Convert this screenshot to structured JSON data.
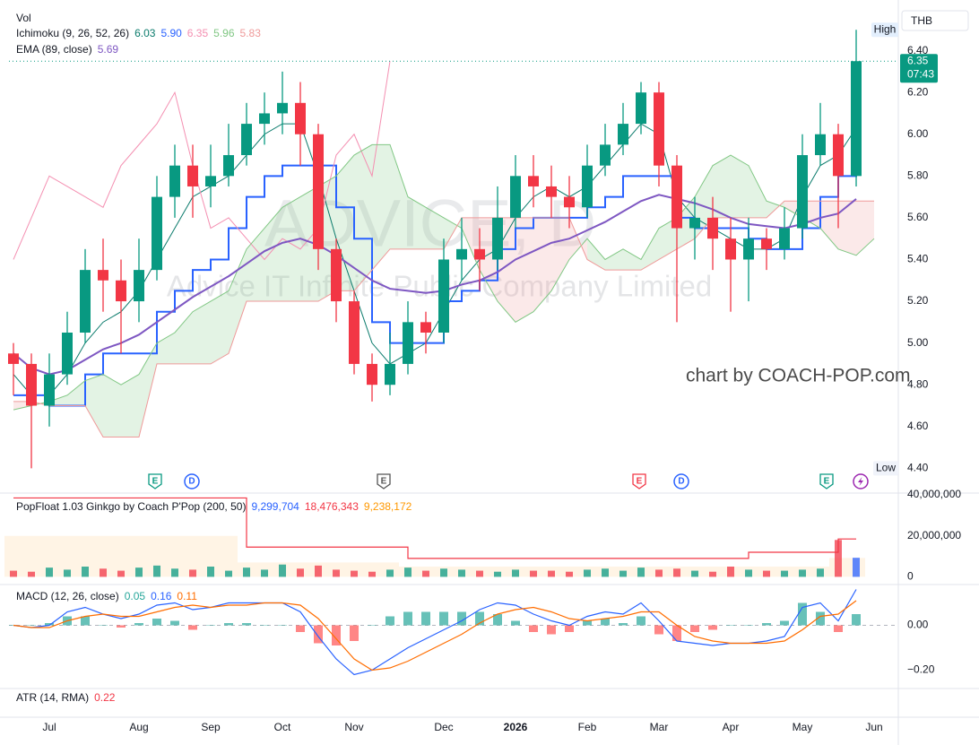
{
  "vol_label": "Vol",
  "currency": "THB",
  "high_label": "High",
  "low_label": "Low",
  "countdown": "07:43",
  "watermark_symbol": "ADVICE, D",
  "watermark_company": "Advice IT Infinite Public Company Limited",
  "credit": "chart by COACH-POP.com",
  "events": [
    "E",
    "D",
    "E",
    "E",
    "D",
    "E"
  ],
  "chart_data": [
    {
      "type": "candlestick",
      "categories": [
        null,
        null,
        "Jul",
        null,
        null,
        null,
        null,
        "Aug",
        null,
        null,
        null,
        "Sep",
        null,
        null,
        null,
        "Oct",
        null,
        null,
        null,
        "Nov",
        null,
        null,
        null,
        null,
        "Dec",
        null,
        null,
        null,
        "2026",
        null,
        null,
        null,
        "Feb",
        null,
        null,
        null,
        "Mar",
        null,
        null,
        null,
        "Apr",
        null,
        null,
        null,
        "May",
        null,
        null,
        null,
        "Jun"
      ],
      "open": [
        4.95,
        4.9,
        4.7,
        4.85,
        5.05,
        5.35,
        5.3,
        5.2,
        5.35,
        5.7,
        5.85,
        5.75,
        5.8,
        5.9,
        6.05,
        6.1,
        6.15,
        6.0,
        5.45,
        5.2,
        4.9,
        4.8,
        4.9,
        5.1,
        5.05,
        5.4,
        5.45,
        5.4,
        5.6,
        5.8,
        5.75,
        5.7,
        5.65,
        5.85,
        5.95,
        6.05,
        6.2,
        5.85,
        5.55,
        5.6,
        5.5,
        5.4,
        5.5,
        5.45,
        5.55,
        5.9,
        6.0,
        5.8,
        null
      ],
      "high": [
        5.0,
        4.95,
        4.95,
        5.15,
        5.45,
        5.5,
        5.4,
        5.5,
        5.8,
        5.95,
        5.95,
        5.95,
        6.05,
        6.15,
        6.2,
        6.3,
        6.25,
        6.05,
        5.5,
        5.25,
        4.95,
        5.05,
        5.2,
        5.15,
        5.5,
        5.6,
        5.55,
        5.75,
        5.9,
        5.9,
        5.85,
        5.8,
        5.95,
        6.05,
        6.15,
        6.25,
        6.25,
        5.9,
        5.7,
        5.7,
        5.6,
        5.6,
        5.55,
        5.65,
        6.0,
        6.15,
        6.05,
        6.5,
        null
      ],
      "low": [
        4.75,
        4.4,
        4.6,
        4.8,
        5.0,
        5.15,
        4.95,
        5.1,
        5.3,
        5.6,
        5.6,
        5.65,
        5.75,
        5.85,
        5.95,
        6.0,
        5.85,
        5.35,
        5.1,
        4.85,
        4.72,
        4.75,
        4.85,
        4.95,
        5.0,
        5.3,
        5.25,
        5.35,
        5.55,
        5.65,
        5.6,
        5.55,
        5.6,
        5.8,
        5.9,
        6.0,
        5.75,
        5.1,
        5.4,
        5.35,
        5.15,
        5.2,
        5.35,
        5.4,
        5.5,
        5.85,
        5.55,
        5.75,
        null
      ],
      "close": [
        4.9,
        4.7,
        4.85,
        5.05,
        5.35,
        5.3,
        5.2,
        5.35,
        5.7,
        5.85,
        5.75,
        5.8,
        5.9,
        6.05,
        6.1,
        6.15,
        6.0,
        5.45,
        5.2,
        4.9,
        4.8,
        4.9,
        5.1,
        5.05,
        5.4,
        5.45,
        5.4,
        5.6,
        5.8,
        5.75,
        5.7,
        5.65,
        5.85,
        5.95,
        6.05,
        6.2,
        5.85,
        5.55,
        5.6,
        5.5,
        5.4,
        5.5,
        5.45,
        5.55,
        5.9,
        6.0,
        5.8,
        6.35,
        null
      ],
      "up_color": "#089981",
      "down_color": "#f23645",
      "ylim": [
        4.29,
        6.6
      ],
      "yticks": [
        {
          "value": 4.4,
          "label": "4.40"
        },
        {
          "value": 4.6,
          "label": "4.60"
        },
        {
          "value": 4.8,
          "label": "4.80"
        },
        {
          "value": 5.0,
          "label": "5.00"
        },
        {
          "value": 5.2,
          "label": "5.20"
        },
        {
          "value": 5.4,
          "label": "5.40"
        },
        {
          "value": 5.6,
          "label": "5.60"
        },
        {
          "value": 5.8,
          "label": "5.80"
        },
        {
          "value": 6.0,
          "label": "6.00"
        },
        {
          "value": 6.2,
          "label": "6.20"
        },
        {
          "value": 6.4,
          "label": "6.40"
        }
      ],
      "grid": false,
      "indicators": [
        {
          "name": "Ichimoku (9, 26, 52, 26)",
          "series": [
            {
              "color": "#0b7b6c",
              "width": 1,
              "values": [
                4.85,
                4.75,
                4.75,
                4.85,
                5.0,
                5.1,
                5.15,
                5.25,
                5.4,
                5.55,
                5.7,
                5.75,
                5.8,
                5.9,
                6.0,
                6.05,
                6.05,
                5.8,
                5.5,
                5.25,
                5.0,
                4.9,
                4.95,
                5.0,
                5.15,
                5.3,
                5.4,
                5.45,
                5.6,
                5.7,
                5.75,
                5.7,
                5.75,
                5.85,
                5.95,
                6.05,
                6.0,
                5.7,
                5.6,
                5.55,
                5.5,
                5.45,
                5.45,
                5.5,
                5.7,
                5.85,
                5.9,
                6.03,
                null
              ]
            },
            {
              "color": "#2962ff",
              "width": 2,
              "last_label": "5.90",
              "values": [
                4.75,
                4.75,
                4.7,
                4.7,
                4.85,
                4.95,
                4.95,
                4.95,
                5.15,
                5.25,
                5.35,
                5.4,
                5.55,
                5.7,
                5.8,
                5.85,
                5.85,
                5.85,
                5.65,
                5.5,
                5.1,
                5.0,
                5.0,
                5.0,
                5.2,
                5.25,
                5.3,
                5.45,
                5.55,
                5.6,
                5.6,
                5.6,
                5.65,
                5.7,
                5.8,
                5.8,
                5.8,
                5.6,
                5.55,
                5.55,
                5.55,
                5.5,
                5.45,
                5.45,
                5.55,
                5.7,
                5.8,
                5.9,
                null
              ]
            },
            {
              "color": "#f48fb1",
              "width": 1,
              "values": [
                5.4,
                5.6,
                5.8,
                5.75,
                5.7,
                5.65,
                5.85,
                5.95,
                6.05,
                6.2,
                5.85,
                5.55,
                5.6,
                5.5,
                5.4,
                5.5,
                5.45,
                5.55,
                5.9,
                6.0,
                5.8,
                6.35,
                null,
                null,
                null,
                null,
                null,
                null,
                null,
                null,
                null,
                null,
                null,
                null,
                null,
                null,
                null,
                null,
                null,
                null,
                null,
                null,
                null,
                null,
                null,
                null,
                null,
                null,
                null
              ]
            },
            {
              "color": "#81c784",
              "width": 1,
              "last": 5.96,
              "values": [
                4.68,
                4.7,
                4.72,
                4.75,
                4.82,
                4.85,
                4.8,
                4.85,
                5.0,
                5.05,
                5.15,
                5.2,
                5.25,
                5.45,
                5.55,
                5.65,
                5.7,
                5.75,
                5.8,
                5.9,
                5.95,
                5.95,
                5.7,
                5.65,
                5.6,
                5.55,
                5.35,
                5.2,
                5.1,
                5.15,
                5.25,
                5.4,
                5.5,
                5.4,
                5.45,
                5.4,
                5.55,
                5.6,
                5.7,
                5.85,
                5.9,
                5.85,
                5.68,
                5.65,
                5.6,
                5.55,
                5.45,
                5.42,
                5.5
              ]
            },
            {
              "color": "#ef9a9a",
              "width": 1,
              "last": 5.83,
              "values": [
                4.72,
                4.72,
                4.7,
                4.7,
                4.7,
                4.55,
                4.55,
                4.55,
                4.9,
                4.9,
                4.9,
                4.9,
                4.95,
                5.2,
                5.2,
                5.2,
                5.2,
                5.2,
                5.25,
                5.25,
                5.35,
                5.45,
                5.45,
                5.45,
                5.45,
                5.6,
                5.6,
                5.6,
                5.6,
                5.6,
                5.6,
                5.6,
                5.4,
                5.35,
                5.35,
                5.35,
                5.4,
                5.45,
                5.5,
                5.6,
                5.6,
                5.6,
                5.6,
                5.68,
                5.68,
                5.68,
                5.68,
                5.68,
                5.68
              ]
            }
          ]
        },
        {
          "name": "EMA (89, close)",
          "series": [
            {
              "color": "#7e57c2",
              "width": 2,
              "values": [
                4.95,
                4.88,
                4.85,
                4.87,
                4.92,
                4.97,
                5.0,
                5.04,
                5.1,
                5.16,
                5.22,
                5.27,
                5.32,
                5.38,
                5.44,
                5.48,
                5.5,
                5.47,
                5.42,
                5.36,
                5.3,
                5.26,
                5.25,
                5.24,
                5.25,
                5.28,
                5.3,
                5.34,
                5.4,
                5.44,
                5.48,
                5.5,
                5.54,
                5.58,
                5.63,
                5.68,
                5.71,
                5.69,
                5.67,
                5.64,
                5.6,
                5.57,
                5.56,
                5.55,
                5.57,
                5.6,
                5.62,
                5.69,
                null
              ]
            }
          ]
        }
      ]
    },
    {
      "type": "bar",
      "name": "PopFloat 1.03 Ginkgo by Coach P'Pop (200, 50)",
      "ylim": [
        -2000000,
        40000000
      ],
      "yticks": [
        {
          "value": 40000000,
          "label": "40,000,000"
        },
        {
          "value": 20000000,
          "label": "20,000,000"
        },
        0
      ],
      "series": [
        {
          "color": "#2962ff",
          "last_label": "9,299,704",
          "values": [
            3000000,
            2500000,
            4500000,
            3500000,
            5000000,
            4000000,
            3000000,
            4500000,
            5500000,
            4000000,
            3500000,
            5000000,
            3000000,
            4500000,
            3500000,
            6000000,
            4000000,
            5500000,
            3500000,
            3000000,
            2500000,
            3500000,
            4500000,
            3000000,
            4000000,
            3500000,
            3000000,
            2500000,
            3500000,
            3000000,
            3000000,
            2500000,
            3500000,
            4000000,
            3000000,
            4500000,
            3500000,
            4000000,
            3000000,
            2500000,
            5000000,
            3500000,
            3000000,
            3000000,
            3500000,
            4000000,
            18000000,
            9299704,
            null
          ]
        },
        {
          "color": "#f23645",
          "last_label": "18,476,343",
          "values": [
            38500000,
            38500000,
            38500000,
            38500000,
            38500000,
            38500000,
            38500000,
            38500000,
            38500000,
            38500000,
            38500000,
            38500000,
            38500000,
            14500000,
            14500000,
            14500000,
            14500000,
            14500000,
            14500000,
            14500000,
            14500000,
            14500000,
            9000000,
            9000000,
            9000000,
            9000000,
            9000000,
            9000000,
            9000000,
            9000000,
            9000000,
            9000000,
            9000000,
            9000000,
            9000000,
            9000000,
            9000000,
            9000000,
            9000000,
            9000000,
            9000000,
            12000000,
            12000000,
            12000000,
            12000000,
            12000000,
            18476343,
            18476343,
            null
          ]
        },
        {
          "color": "#ff9800",
          "last_label": "9,238,172",
          "values": [
            20000000,
            20000000,
            20000000,
            20000000,
            20000000,
            20000000,
            20000000,
            20000000,
            20000000,
            20000000,
            20000000,
            20000000,
            20000000,
            7000000,
            7000000,
            7000000,
            7000000,
            7000000,
            7000000,
            7000000,
            7000000,
            7000000,
            5000000,
            5000000,
            5000000,
            5000000,
            5000000,
            5000000,
            5000000,
            5000000,
            5000000,
            5000000,
            5000000,
            5000000,
            5000000,
            5000000,
            5000000,
            5000000,
            5000000,
            5000000,
            5000000,
            5000000,
            5000000,
            5000000,
            5000000,
            5000000,
            9238172,
            9238172,
            null
          ]
        }
      ]
    },
    {
      "type": "macd",
      "name": "MACD (12, 26, close)",
      "ylim": [
        -0.27,
        0.17
      ],
      "yticks": [
        {
          "value": 0,
          "label": "0.00"
        },
        {
          "value": -0.2,
          "label": "−0.20"
        }
      ],
      "series": [
        {
          "color": "#26a69a",
          "negative_color": "#ff5252",
          "values": [
            0,
            0,
            0.01,
            0.04,
            0.04,
            0,
            -0.01,
            0.01,
            0.03,
            0.02,
            -0.02,
            0,
            0.01,
            0.01,
            0,
            0,
            -0.03,
            -0.08,
            -0.09,
            -0.07,
            0,
            0.04,
            0.06,
            0.06,
            0.06,
            0.06,
            0.06,
            0.05,
            0.02,
            -0.03,
            -0.04,
            -0.03,
            0.02,
            0.03,
            0.01,
            0.04,
            -0.04,
            -0.07,
            -0.03,
            -0.02,
            0,
            0,
            0.01,
            0.02,
            0.1,
            0.06,
            -0.03,
            0.05,
            null
          ]
        },
        {
          "color": "#2962ff",
          "values": [
            0,
            -0.01,
            0,
            0.06,
            0.08,
            0.05,
            0.03,
            0.05,
            0.09,
            0.1,
            0.07,
            0.08,
            0.1,
            0.1,
            0.1,
            0.1,
            0.06,
            -0.05,
            -0.15,
            -0.22,
            -0.2,
            -0.15,
            -0.1,
            -0.06,
            -0.02,
            0.02,
            0.07,
            0.1,
            0.09,
            0.05,
            0.02,
            0,
            0.04,
            0.06,
            0.05,
            0.1,
            0.02,
            -0.07,
            -0.08,
            -0.09,
            -0.08,
            -0.08,
            -0.07,
            -0.05,
            0.08,
            0.1,
            0.02,
            0.16,
            null
          ]
        },
        {
          "color": "#ff6d00",
          "values": [
            0,
            -0.01,
            -0.01,
            0.02,
            0.04,
            0.05,
            0.04,
            0.04,
            0.06,
            0.08,
            0.09,
            0.08,
            0.09,
            0.09,
            0.1,
            0.1,
            0.09,
            0.03,
            -0.06,
            -0.15,
            -0.2,
            -0.19,
            -0.16,
            -0.12,
            -0.08,
            -0.04,
            0.01,
            0.05,
            0.07,
            0.08,
            0.06,
            0.03,
            0.02,
            0.03,
            0.04,
            0.06,
            0.06,
            0,
            -0.05,
            -0.07,
            -0.08,
            -0.08,
            -0.08,
            -0.07,
            -0.02,
            0.04,
            0.05,
            0.11,
            null
          ]
        }
      ]
    },
    {
      "type": "line",
      "name": "ATR (14, RMA)",
      "series": [
        {
          "color": "#f23645",
          "last": 0.22
        }
      ]
    }
  ]
}
